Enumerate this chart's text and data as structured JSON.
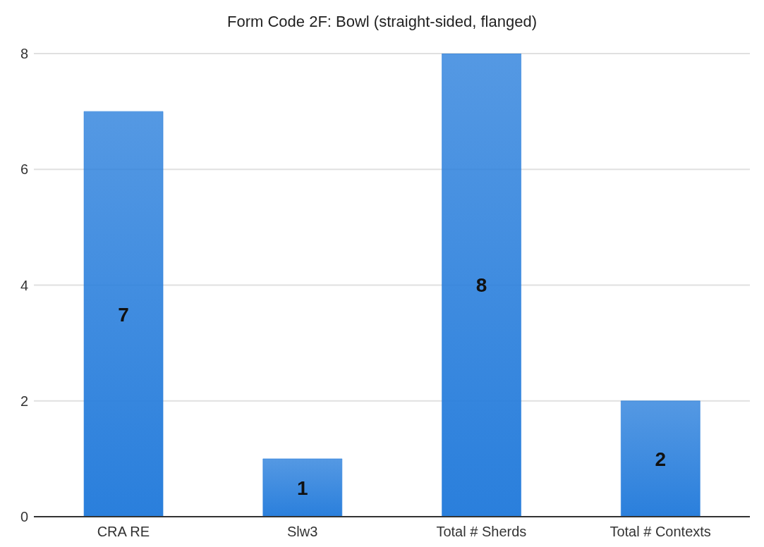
{
  "chart_data": {
    "type": "bar",
    "title": "Form Code 2F: Bowl (straight-sided, flanged)",
    "categories": [
      "CRA RE",
      "Slw3",
      "Total # Sherds",
      "Total # Contexts"
    ],
    "values": [
      7,
      1,
      8,
      2
    ],
    "color": "#2a7fdc",
    "ylim": [
      0,
      8
    ],
    "yticks": [
      0,
      2,
      4,
      6,
      8
    ],
    "grid": "y",
    "data_labels": true
  }
}
